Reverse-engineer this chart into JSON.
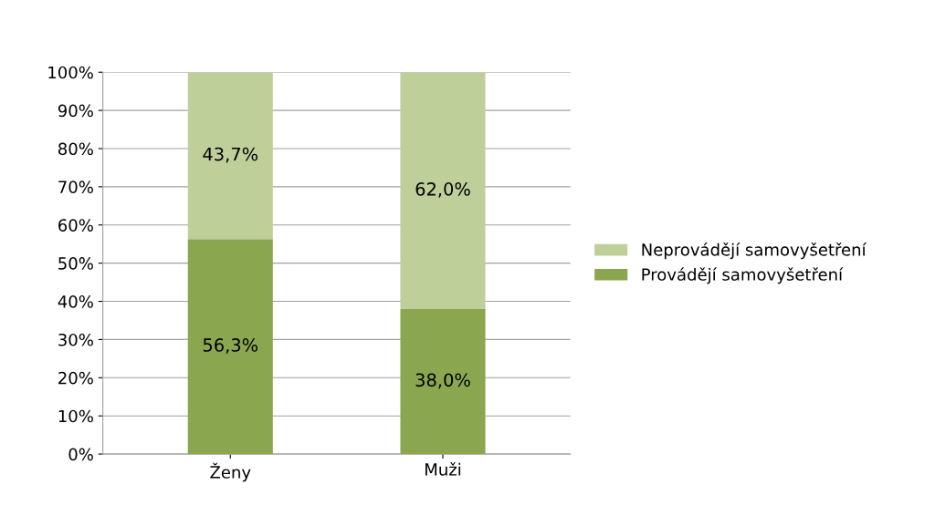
{
  "chart_data": {
    "type": "bar",
    "stacked": true,
    "categories": [
      "Ženy",
      "Muži"
    ],
    "series": [
      {
        "name": "Provádějí samovyšetření",
        "color": "#8aa64f",
        "values": [
          56.3,
          38.0
        ],
        "value_labels": [
          "56,3%",
          "38,0%"
        ]
      },
      {
        "name": "Neprovádějí samovyšetření",
        "color": "#bfcf9a",
        "values": [
          43.7,
          62.0
        ],
        "value_labels": [
          "43,7%",
          "62,0%"
        ]
      }
    ],
    "ylim": [
      0,
      100
    ],
    "yticks": [
      {
        "value": 0,
        "label": "0%"
      },
      {
        "value": 10,
        "label": "10%"
      },
      {
        "value": 20,
        "label": "20%"
      },
      {
        "value": 30,
        "label": "30%"
      },
      {
        "value": 40,
        "label": "40%"
      },
      {
        "value": 50,
        "label": "50%"
      },
      {
        "value": 60,
        "label": "60%"
      },
      {
        "value": 70,
        "label": "70%"
      },
      {
        "value": 80,
        "label": "80%"
      },
      {
        "value": 90,
        "label": "90%"
      },
      {
        "value": 100,
        "label": "100%"
      }
    ],
    "grid": "y",
    "legend": "right"
  }
}
